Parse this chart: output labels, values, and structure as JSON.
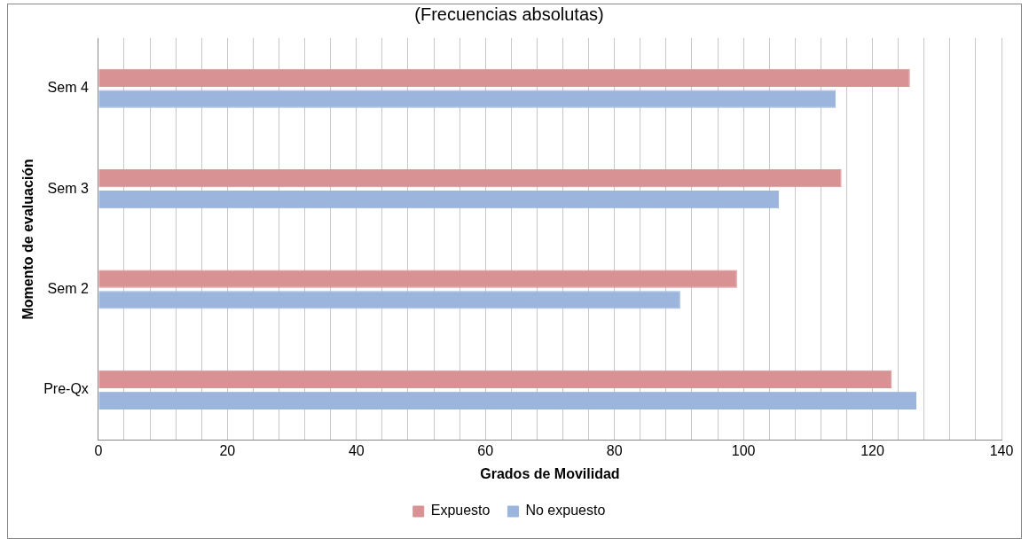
{
  "chart_data": {
    "type": "bar",
    "orientation": "horizontal",
    "title": "(Frecuencias absolutas)",
    "xlabel": "Grados de Movilidad",
    "ylabel": "Momento de evaluación",
    "categories": [
      "Sem 4",
      "Sem 3",
      "Sem 2",
      "Pre-Qx"
    ],
    "series": [
      {
        "name": "Expuesto",
        "color": "#d99294",
        "values": [
          125.8,
          115.2,
          99,
          123
        ]
      },
      {
        "name": "No expuesto",
        "color": "#9bb5dc",
        "values": [
          114.3,
          105.5,
          90.2,
          126.8
        ]
      }
    ],
    "xlim": [
      0,
      140
    ],
    "xticks": [
      0,
      {
        "value": 4,
        "label": null
      },
      {
        "value": 8,
        "label": null
      },
      {
        "value": 12,
        "label": null
      },
      {
        "value": 16,
        "label": null
      },
      20,
      {
        "value": 24,
        "label": null
      },
      {
        "value": 28,
        "label": null
      },
      {
        "value": 32,
        "label": null
      },
      {
        "value": 36,
        "label": null
      },
      40,
      {
        "value": 44,
        "label": null
      },
      {
        "value": 48,
        "label": null
      },
      {
        "value": 52,
        "label": null
      },
      {
        "value": 56,
        "label": null
      },
      60,
      {
        "value": 64,
        "label": null
      },
      {
        "value": 68,
        "label": null
      },
      {
        "value": 72,
        "label": null
      },
      {
        "value": 76,
        "label": null
      },
      80,
      {
        "value": 84,
        "label": null
      },
      {
        "value": 88,
        "label": null
      },
      {
        "value": 92,
        "label": null
      },
      {
        "value": 96,
        "label": null
      },
      100,
      {
        "value": 104,
        "label": null
      },
      {
        "value": 108,
        "label": null
      },
      {
        "value": 112,
        "label": null
      },
      {
        "value": 116,
        "label": null
      },
      120,
      {
        "value": 124,
        "label": null
      },
      {
        "value": 128,
        "label": null
      },
      {
        "value": 132,
        "label": null
      },
      {
        "value": 136,
        "label": null
      },
      140
    ],
    "grid": "x",
    "legend": "bottom"
  }
}
